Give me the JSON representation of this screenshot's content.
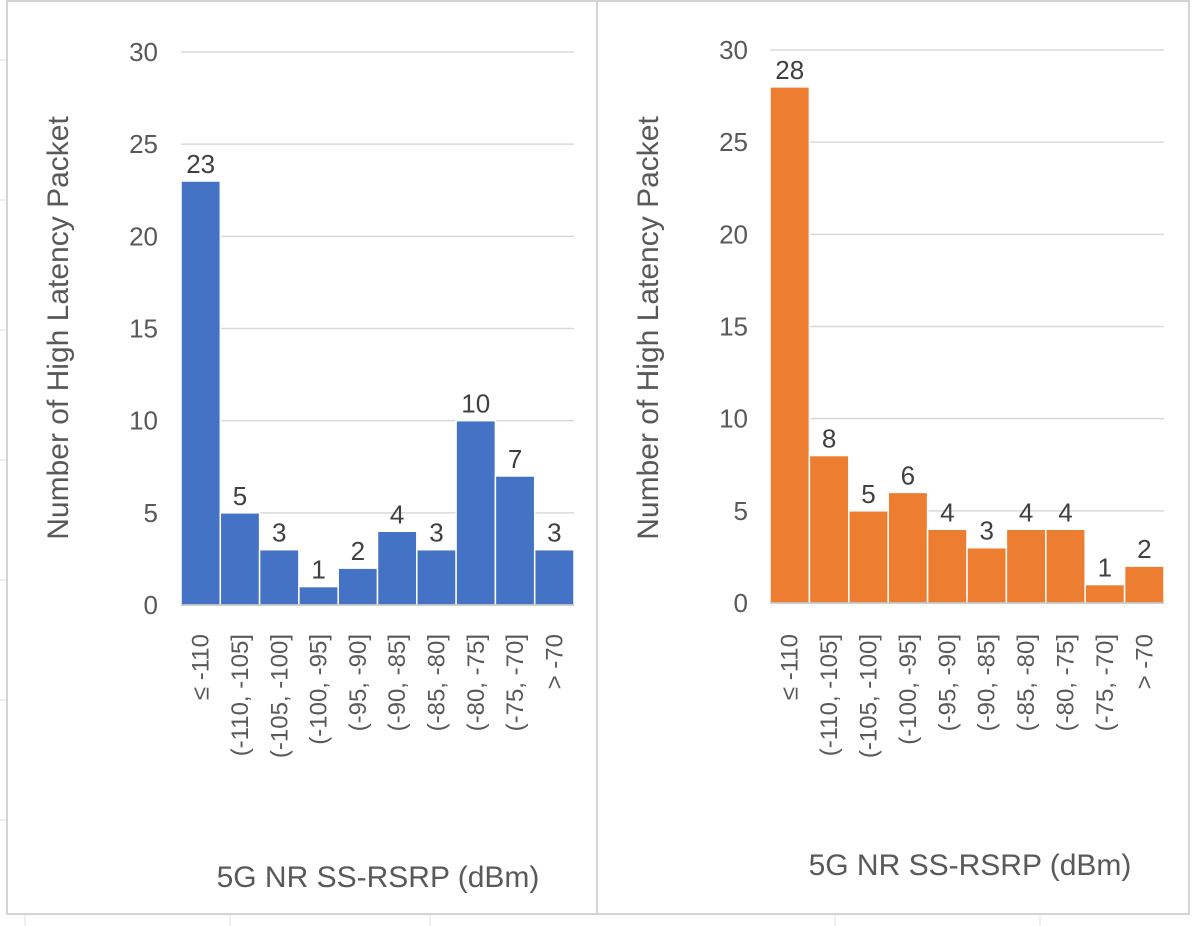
{
  "chart_data": [
    {
      "type": "bar",
      "title": "",
      "xlabel": "5G NR SS-RSRP (dBm)",
      "ylabel": "Number of High Latency Packet",
      "ylim": [
        0,
        30
      ],
      "yticks": [
        0,
        5,
        10,
        15,
        20,
        25,
        30
      ],
      "grid": true,
      "color": "#4472C4",
      "categories": [
        "≤ -110",
        "(-110, -105]",
        "(-105, -100]",
        "(-100, -95]",
        "(-95, -90]",
        "(-90, -85]",
        "(-85, -80]",
        "(-80, -75]",
        "(-75, -70]",
        "> -70"
      ],
      "values": [
        23,
        5,
        3,
        1,
        2,
        4,
        3,
        10,
        7,
        3
      ]
    },
    {
      "type": "bar",
      "title": "",
      "xlabel": "5G NR SS-RSRP (dBm)",
      "ylabel": "Number of High Latency Packet",
      "ylim": [
        0,
        30
      ],
      "yticks": [
        0,
        5,
        10,
        15,
        20,
        25,
        30
      ],
      "grid": true,
      "color": "#ED7D31",
      "categories": [
        "≤ -110",
        "(-110, -105]",
        "(-105, -100]",
        "(-100, -95]",
        "(-95, -90]",
        "(-90, -85]",
        "(-85, -80]",
        "(-80, -75]",
        "(-75, -70]",
        "> -70"
      ],
      "values": [
        28,
        8,
        5,
        6,
        4,
        3,
        4,
        4,
        1,
        2
      ]
    }
  ]
}
